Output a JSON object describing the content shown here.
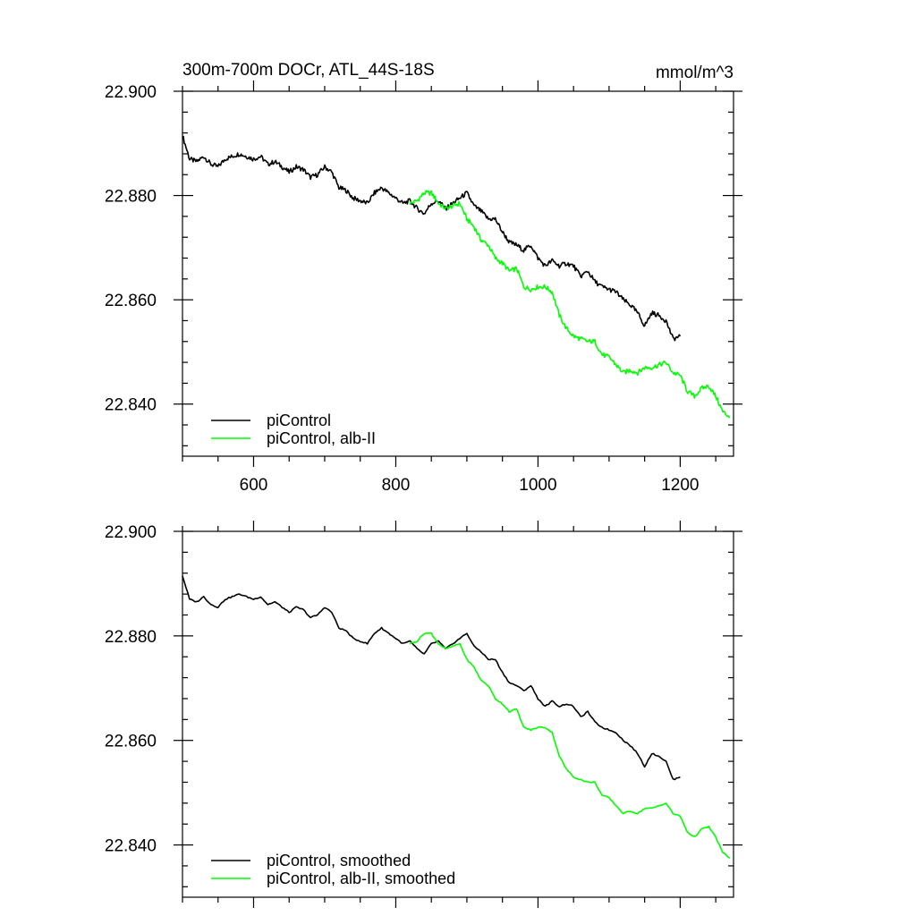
{
  "chart_data": [
    {
      "type": "line",
      "title": "300m-700m DOCr, ATL_44S-18S",
      "units": "mmol/m^3",
      "xlim": [
        500,
        1275
      ],
      "ylim": [
        22.83,
        22.9
      ],
      "x_ticks": [
        600,
        800,
        1000,
        1200
      ],
      "y_ticks": [
        "22.840",
        "22.860",
        "22.880",
        "22.900"
      ],
      "x_tick_labels_shown": true,
      "grid": false,
      "legend_position": "bottom-left",
      "series": [
        {
          "name": "piControl",
          "color": "#000000",
          "smooth": false,
          "points": [
            [
              500,
              22.8915
            ],
            [
              510,
              22.887
            ],
            [
              520,
              22.8865
            ],
            [
              530,
              22.8875
            ],
            [
              540,
              22.886
            ],
            [
              550,
              22.8855
            ],
            [
              560,
              22.887
            ],
            [
              570,
              22.8875
            ],
            [
              580,
              22.888
            ],
            [
              590,
              22.8875
            ],
            [
              600,
              22.887
            ],
            [
              610,
              22.8875
            ],
            [
              620,
              22.886
            ],
            [
              630,
              22.8865
            ],
            [
              640,
              22.8855
            ],
            [
              650,
              22.8845
            ],
            [
              660,
              22.8855
            ],
            [
              670,
              22.885
            ],
            [
              680,
              22.8835
            ],
            [
              690,
              22.884
            ],
            [
              700,
              22.8855
            ],
            [
              710,
              22.8845
            ],
            [
              720,
              22.8815
            ],
            [
              730,
              22.881
            ],
            [
              740,
              22.8795
            ],
            [
              750,
              22.879
            ],
            [
              760,
              22.8785
            ],
            [
              770,
              22.8805
            ],
            [
              780,
              22.8815
            ],
            [
              790,
              22.8805
            ],
            [
              800,
              22.8795
            ],
            [
              810,
              22.8785
            ],
            [
              820,
              22.879
            ],
            [
              830,
              22.8775
            ],
            [
              840,
              22.8765
            ],
            [
              850,
              22.8785
            ],
            [
              860,
              22.879
            ],
            [
              870,
              22.8775
            ],
            [
              880,
              22.8785
            ],
            [
              890,
              22.8795
            ],
            [
              900,
              22.8805
            ],
            [
              910,
              22.878
            ],
            [
              920,
              22.877
            ],
            [
              930,
              22.8755
            ],
            [
              940,
              22.8755
            ],
            [
              950,
              22.873
            ],
            [
              960,
              22.871
            ],
            [
              970,
              22.8705
            ],
            [
              980,
              22.8695
            ],
            [
              990,
              22.8705
            ],
            [
              1000,
              22.868
            ],
            [
              1010,
              22.8665
            ],
            [
              1020,
              22.8675
            ],
            [
              1030,
              22.8665
            ],
            [
              1040,
              22.867
            ],
            [
              1050,
              22.8665
            ],
            [
              1060,
              22.8645
            ],
            [
              1070,
              22.8655
            ],
            [
              1080,
              22.8635
            ],
            [
              1090,
              22.8625
            ],
            [
              1100,
              22.862
            ],
            [
              1110,
              22.8615
            ],
            [
              1120,
              22.86
            ],
            [
              1130,
              22.859
            ],
            [
              1140,
              22.8575
            ],
            [
              1150,
              22.855
            ],
            [
              1160,
              22.8575
            ],
            [
              1170,
              22.857
            ],
            [
              1180,
              22.856
            ],
            [
              1190,
              22.8525
            ],
            [
              1200,
              22.853
            ]
          ]
        },
        {
          "name": "piControl, alb-II",
          "color": "#00ff00",
          "smooth": false,
          "points": [
            [
              820,
              22.8785
            ],
            [
              830,
              22.879
            ],
            [
              840,
              22.8805
            ],
            [
              850,
              22.8805
            ],
            [
              860,
              22.8785
            ],
            [
              870,
              22.8775
            ],
            [
              880,
              22.878
            ],
            [
              890,
              22.8785
            ],
            [
              900,
              22.8755
            ],
            [
              910,
              22.874
            ],
            [
              920,
              22.8715
            ],
            [
              930,
              22.8705
            ],
            [
              940,
              22.868
            ],
            [
              950,
              22.867
            ],
            [
              960,
              22.8655
            ],
            [
              970,
              22.866
            ],
            [
              980,
              22.8625
            ],
            [
              990,
              22.862
            ],
            [
              1000,
              22.8625
            ],
            [
              1010,
              22.8625
            ],
            [
              1020,
              22.8615
            ],
            [
              1030,
              22.857
            ],
            [
              1040,
              22.8545
            ],
            [
              1050,
              22.853
            ],
            [
              1060,
              22.8525
            ],
            [
              1070,
              22.852
            ],
            [
              1080,
              22.852
            ],
            [
              1090,
              22.8495
            ],
            [
              1100,
              22.849
            ],
            [
              1110,
              22.8475
            ],
            [
              1120,
              22.846
            ],
            [
              1130,
              22.8465
            ],
            [
              1140,
              22.846
            ],
            [
              1150,
              22.847
            ],
            [
              1160,
              22.847
            ],
            [
              1170,
              22.8475
            ],
            [
              1180,
              22.848
            ],
            [
              1190,
              22.846
            ],
            [
              1200,
              22.8455
            ],
            [
              1210,
              22.8425
            ],
            [
              1220,
              22.8415
            ],
            [
              1230,
              22.843
            ],
            [
              1240,
              22.8435
            ],
            [
              1250,
              22.8415
            ],
            [
              1260,
              22.8385
            ],
            [
              1270,
              22.8375
            ]
          ]
        }
      ]
    },
    {
      "type": "line",
      "title": "",
      "units": "",
      "xlim": [
        500,
        1275
      ],
      "ylim": [
        22.83,
        22.9
      ],
      "x_ticks": [
        600,
        800,
        1000,
        1200
      ],
      "y_ticks": [
        "22.840",
        "22.860",
        "22.880",
        "22.900"
      ],
      "x_tick_labels_shown": false,
      "grid": false,
      "legend_position": "bottom-left",
      "series": [
        {
          "name": "piControl, smoothed",
          "color": "#000000",
          "smooth": true,
          "points": [
            [
              500,
              22.8915
            ],
            [
              510,
              22.887
            ],
            [
              520,
              22.8865
            ],
            [
              530,
              22.8875
            ],
            [
              540,
              22.886
            ],
            [
              550,
              22.8855
            ],
            [
              560,
              22.887
            ],
            [
              570,
              22.8875
            ],
            [
              580,
              22.888
            ],
            [
              590,
              22.8875
            ],
            [
              600,
              22.887
            ],
            [
              610,
              22.8875
            ],
            [
              620,
              22.886
            ],
            [
              630,
              22.8865
            ],
            [
              640,
              22.8855
            ],
            [
              650,
              22.8845
            ],
            [
              660,
              22.8855
            ],
            [
              670,
              22.885
            ],
            [
              680,
              22.8835
            ],
            [
              690,
              22.884
            ],
            [
              700,
              22.8855
            ],
            [
              710,
              22.8845
            ],
            [
              720,
              22.8815
            ],
            [
              730,
              22.881
            ],
            [
              740,
              22.8795
            ],
            [
              750,
              22.879
            ],
            [
              760,
              22.8785
            ],
            [
              770,
              22.8805
            ],
            [
              780,
              22.8815
            ],
            [
              790,
              22.8805
            ],
            [
              800,
              22.8795
            ],
            [
              810,
              22.8785
            ],
            [
              820,
              22.879
            ],
            [
              830,
              22.8775
            ],
            [
              840,
              22.8765
            ],
            [
              850,
              22.8785
            ],
            [
              860,
              22.879
            ],
            [
              870,
              22.8775
            ],
            [
              880,
              22.8785
            ],
            [
              890,
              22.8795
            ],
            [
              900,
              22.8805
            ],
            [
              910,
              22.878
            ],
            [
              920,
              22.877
            ],
            [
              930,
              22.8755
            ],
            [
              940,
              22.8755
            ],
            [
              950,
              22.873
            ],
            [
              960,
              22.871
            ],
            [
              970,
              22.8705
            ],
            [
              980,
              22.8695
            ],
            [
              990,
              22.8705
            ],
            [
              1000,
              22.868
            ],
            [
              1010,
              22.8665
            ],
            [
              1020,
              22.8675
            ],
            [
              1030,
              22.8665
            ],
            [
              1040,
              22.867
            ],
            [
              1050,
              22.8665
            ],
            [
              1060,
              22.8645
            ],
            [
              1070,
              22.8655
            ],
            [
              1080,
              22.8635
            ],
            [
              1090,
              22.8625
            ],
            [
              1100,
              22.862
            ],
            [
              1110,
              22.8615
            ],
            [
              1120,
              22.86
            ],
            [
              1130,
              22.859
            ],
            [
              1140,
              22.8575
            ],
            [
              1150,
              22.855
            ],
            [
              1160,
              22.8575
            ],
            [
              1170,
              22.857
            ],
            [
              1180,
              22.856
            ],
            [
              1190,
              22.8525
            ],
            [
              1200,
              22.853
            ]
          ]
        },
        {
          "name": "piControl, alb-II, smoothed",
          "color": "#00ff00",
          "smooth": true,
          "points": [
            [
              820,
              22.8785
            ],
            [
              830,
              22.879
            ],
            [
              840,
              22.8805
            ],
            [
              850,
              22.8805
            ],
            [
              860,
              22.8785
            ],
            [
              870,
              22.8775
            ],
            [
              880,
              22.878
            ],
            [
              890,
              22.8785
            ],
            [
              900,
              22.8755
            ],
            [
              910,
              22.874
            ],
            [
              920,
              22.8715
            ],
            [
              930,
              22.8705
            ],
            [
              940,
              22.868
            ],
            [
              950,
              22.867
            ],
            [
              960,
              22.8655
            ],
            [
              970,
              22.866
            ],
            [
              980,
              22.8625
            ],
            [
              990,
              22.862
            ],
            [
              1000,
              22.8625
            ],
            [
              1010,
              22.8625
            ],
            [
              1020,
              22.8615
            ],
            [
              1030,
              22.857
            ],
            [
              1040,
              22.8545
            ],
            [
              1050,
              22.853
            ],
            [
              1060,
              22.8525
            ],
            [
              1070,
              22.852
            ],
            [
              1080,
              22.852
            ],
            [
              1090,
              22.8495
            ],
            [
              1100,
              22.849
            ],
            [
              1110,
              22.8475
            ],
            [
              1120,
              22.846
            ],
            [
              1130,
              22.8465
            ],
            [
              1140,
              22.846
            ],
            [
              1150,
              22.847
            ],
            [
              1160,
              22.847
            ],
            [
              1170,
              22.8475
            ],
            [
              1180,
              22.848
            ],
            [
              1190,
              22.846
            ],
            [
              1200,
              22.8455
            ],
            [
              1210,
              22.8425
            ],
            [
              1220,
              22.8415
            ],
            [
              1230,
              22.843
            ],
            [
              1240,
              22.8435
            ],
            [
              1250,
              22.8415
            ],
            [
              1260,
              22.8385
            ],
            [
              1270,
              22.8375
            ]
          ]
        }
      ]
    }
  ]
}
